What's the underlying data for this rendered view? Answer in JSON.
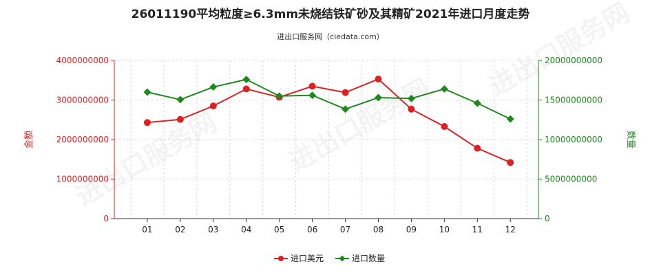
{
  "chart_data": {
    "type": "line",
    "title": "26011190平均粒度≥6.3mm未烧结铁矿砂及其精矿2021年进口月度走势",
    "subtitle": "进出口服务网（ciedata.com）",
    "categories": [
      "01",
      "02",
      "03",
      "04",
      "05",
      "06",
      "07",
      "08",
      "09",
      "10",
      "11",
      "12"
    ],
    "y_left": {
      "label": "金额",
      "ticks": [
        "0",
        "1000000000",
        "2000000000",
        "3000000000",
        "4000000000"
      ],
      "range": [
        0,
        4000000000
      ],
      "color": "#e02020"
    },
    "y_right": {
      "label": "数量",
      "ticks": [
        "0",
        "5000000000",
        "10000000000",
        "15000000000",
        "20000000000"
      ],
      "range": [
        0,
        20000000000
      ],
      "color": "#1e8a1e"
    },
    "series": [
      {
        "name": "进口美元",
        "axis": "left",
        "color": "#e02020",
        "marker": "circle",
        "values": [
          2430000000,
          2510000000,
          2850000000,
          3280000000,
          3070000000,
          3350000000,
          3190000000,
          3530000000,
          2770000000,
          2330000000,
          1780000000,
          1420000000
        ]
      },
      {
        "name": "进口数量",
        "axis": "right",
        "color": "#1e8a1e",
        "marker": "diamond",
        "values": [
          16000000000,
          15050000000,
          16650000000,
          17600000000,
          15500000000,
          15600000000,
          13850000000,
          15300000000,
          15200000000,
          16400000000,
          14600000000,
          12600000000
        ]
      }
    ],
    "grid": true,
    "legend_position": "bottom-center"
  },
  "watermark": "进出口服务网"
}
